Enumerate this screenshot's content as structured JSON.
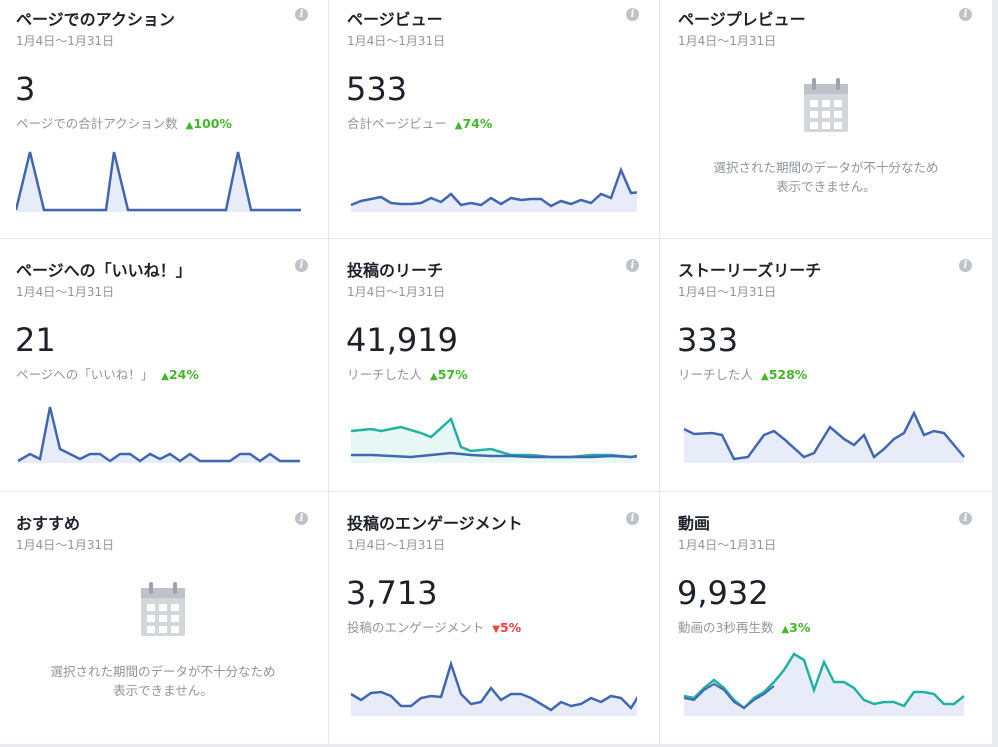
{
  "cards": [
    {
      "title": "ページでのアクション",
      "date": "1月4日～1月31日",
      "value": "3",
      "sub_label": "ページでの合計アクション数",
      "delta": "100%",
      "delta_dir": "up"
    },
    {
      "title": "ページビュー",
      "date": "1月4日～1月31日",
      "value": "533",
      "sub_label": "合計ページビュー",
      "delta": "74%",
      "delta_dir": "up"
    },
    {
      "title": "ページプレビュー",
      "date": "1月4日～1月31日",
      "nodata_line1": "選択された期間のデータが不十分なため",
      "nodata_line2": "表示できません。"
    },
    {
      "title": "ページへの「いいね！」",
      "date": "1月4日～1月31日",
      "value": "21",
      "sub_label": "ページへの「いいね！」",
      "delta": "24%",
      "delta_dir": "up"
    },
    {
      "title": "投稿のリーチ",
      "date": "1月4日～1月31日",
      "value": "41,919",
      "sub_label": "リーチした人",
      "delta": "57%",
      "delta_dir": "up"
    },
    {
      "title": "ストーリーズリーチ",
      "date": "1月4日～1月31日",
      "value": "333",
      "sub_label": "リーチした人",
      "delta": "528%",
      "delta_dir": "up"
    },
    {
      "title": "おすすめ",
      "date": "1月4日～1月31日",
      "nodata_line1": "選択された期間のデータが不十分なため",
      "nodata_line2": "表示できません。"
    },
    {
      "title": "投稿のエンゲージメント",
      "date": "1月4日～1月31日",
      "value": "3,713",
      "sub_label": "投稿のエンゲージメント",
      "delta": "5%",
      "delta_dir": "down"
    },
    {
      "title": "動画",
      "date": "1月4日～1月31日",
      "value": "9,932",
      "sub_label": "動画の3秒再生数",
      "delta": "3%",
      "delta_dir": "up"
    }
  ],
  "colors": {
    "blue_line": "#4267b2",
    "teal_line": "#20b2a0",
    "area_fill": "#e8ecf8",
    "teal_fill": "#e6f7f4",
    "up": "#42b72a",
    "down": "#fa3e3e"
  },
  "icons": {
    "info": "info-icon",
    "calendar": "calendar-icon"
  },
  "info_glyph": "i",
  "arrow_up": "▲",
  "arrow_down": "▼"
}
